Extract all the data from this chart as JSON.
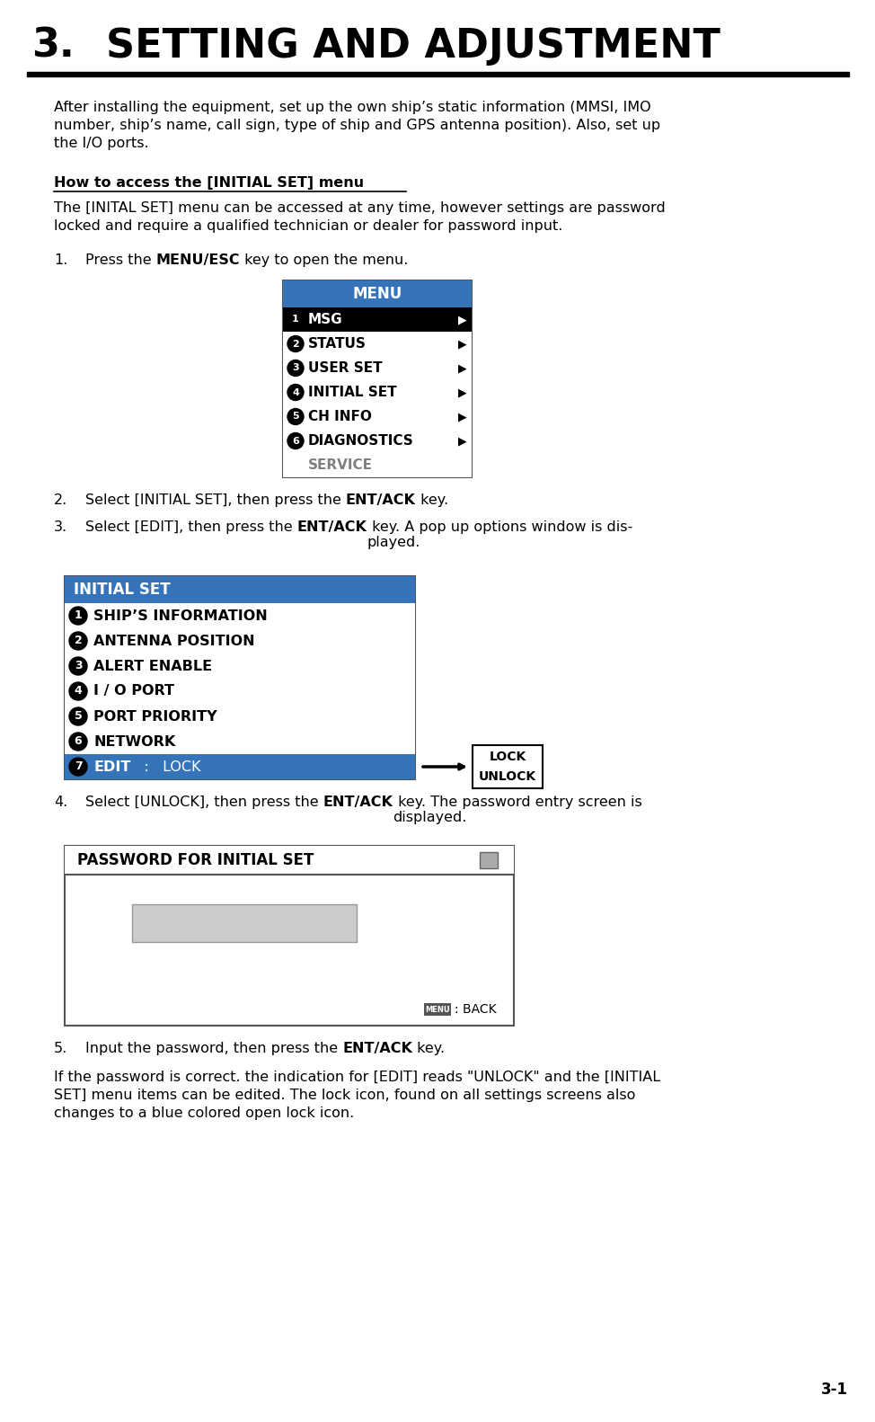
{
  "title_number": "3.",
  "title_text": "SETTING AND ADJUSTMENT",
  "title_fontsize": 32,
  "title_color": "#000000",
  "rule_color": "#000000",
  "body_text_color": "#000000",
  "bg_color": "#ffffff",
  "menu_box": {
    "title": "MENU",
    "title_bg": "#3574b8",
    "title_fg": "#ffffff",
    "items": [
      {
        "num": "1",
        "label": "MSG",
        "highlight": true
      },
      {
        "num": "2",
        "label": "STATUS",
        "highlight": false
      },
      {
        "num": "3",
        "label": "USER SET",
        "highlight": false
      },
      {
        "num": "4",
        "label": "INITIAL SET",
        "highlight": false
      },
      {
        "num": "5",
        "label": "CH INFO",
        "highlight": false
      },
      {
        "num": "6",
        "label": "DIAGNOSTICS",
        "highlight": false
      },
      {
        "num": "",
        "label": "SERVICE",
        "highlight": false,
        "gray": true
      }
    ],
    "item_bg_highlight": "#000000",
    "item_bg_normal": "#ffffff",
    "item_fg_highlight": "#ffffff",
    "item_fg_normal": "#000000",
    "item_fg_gray": "#808080",
    "border_color": "#555555"
  },
  "initial_set_box": {
    "title": "INITIAL SET",
    "title_bg": "#3574b8",
    "title_fg": "#ffffff",
    "items": [
      {
        "num": "1",
        "label": "SHIP’S INFORMATION",
        "highlight": false
      },
      {
        "num": "2",
        "label": "ANTENNA POSITION",
        "highlight": false
      },
      {
        "num": "3",
        "label": "ALERT ENABLE",
        "highlight": false
      },
      {
        "num": "4",
        "label": "I / O PORT",
        "highlight": false
      },
      {
        "num": "5",
        "label": "PORT PRIORITY",
        "highlight": false
      },
      {
        "num": "6",
        "label": "NETWORK",
        "highlight": false
      },
      {
        "num": "7",
        "label": "EDIT",
        "edit_suffix": "   :   LOCK",
        "highlight": true
      }
    ],
    "item_bg_highlight": "#3574b8",
    "item_fg_highlight": "#ffffff",
    "item_fg_normal": "#000000",
    "border_color": "#555555"
  },
  "lock_unlock_box": {
    "line1": "LOCK",
    "line2": "UNLOCK",
    "bg": "#ffffff",
    "border": "#000000"
  },
  "password_box": {
    "title": "PASSWORD FOR INITIAL SET",
    "border": "#555555",
    "input_bg": "#cccccc",
    "menu_icon_bg": "#555555",
    "menu_icon_fg": "#ffffff"
  },
  "para1": "After installing the equipment, set up the own ship’s static information (MMSI, IMO\nnumber, ship’s name, call sign, type of ship and GPS antenna position). Also, set up\nthe I/O ports.",
  "heading1": "How to access the [INITIAL SET] menu",
  "para2": "The [INITAL SET] menu can be accessed at any time, however settings are password\nlocked and require a qualified technician or dealer for password input.",
  "step1_pre": "Press the ",
  "step1_bold": "MENU/ESC",
  "step1_post": " key to open the menu.",
  "step2_pre": "Select [INITIAL SET], then press the ",
  "step2_bold": "ENT/ACK",
  "step2_post": " key.",
  "step3_pre": "Select [EDIT], then press the ",
  "step3_bold": "ENT/ACK",
  "step3_post": " key. A pop up options window is dis-\nplayed.",
  "step4_pre": "Select [UNLOCK], then press the ",
  "step4_bold": "ENT/ACK",
  "step4_post": " key. The password entry screen is\ndisplayed.",
  "step5_pre": "Input the password, then press the ",
  "step5_bold": "ENT/ACK",
  "step5_post": " key.",
  "para_final": "If the password is correct. the indication for [EDIT] reads \"UNLOCK\" and the [INITIAL\nSET] menu items can be edited. The lock icon, found on all settings screens also\nchanges to a blue colored open lock icon.",
  "page_number": "3-1",
  "font_size_body": 11.5
}
